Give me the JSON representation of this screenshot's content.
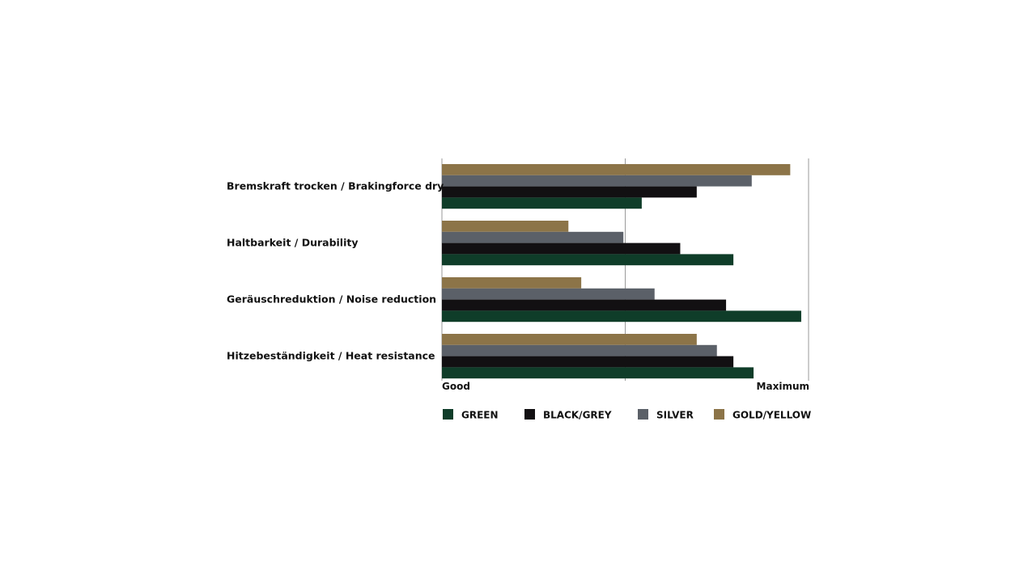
{
  "chart_data": {
    "type": "bar",
    "orientation": "horizontal",
    "categories": [
      "Bremskraft trocken / Brakingforce dry",
      "Haltbarkeit / Durability",
      "Geräuschreduktion / Noise reduction",
      "Hitzebeständigkeit / Heat resistance"
    ],
    "series": [
      {
        "name": "GOLD/YELLOW",
        "color": "#8c7448",
        "values": [
          95,
          34.5,
          38,
          69.5
        ]
      },
      {
        "name": "SILVER",
        "color": "#5b6068",
        "values": [
          84.5,
          49.5,
          58,
          75
        ]
      },
      {
        "name": "BLACK/GREY",
        "color": "#121012",
        "values": [
          69.5,
          65,
          77.5,
          79.5
        ]
      },
      {
        "name": "GREEN",
        "color": "#0f3d29",
        "values": [
          54.5,
          79.5,
          98,
          85
        ]
      }
    ],
    "legend_order": [
      "GREEN",
      "BLACK/GREY",
      "SILVER",
      "GOLD/YELLOW"
    ],
    "xlabel_min": "Good",
    "xlabel_max": "Maximum",
    "xlim": [
      0,
      100
    ],
    "grid": true,
    "legend_position": "bottom",
    "gridline_color": "#9a9a9a"
  }
}
